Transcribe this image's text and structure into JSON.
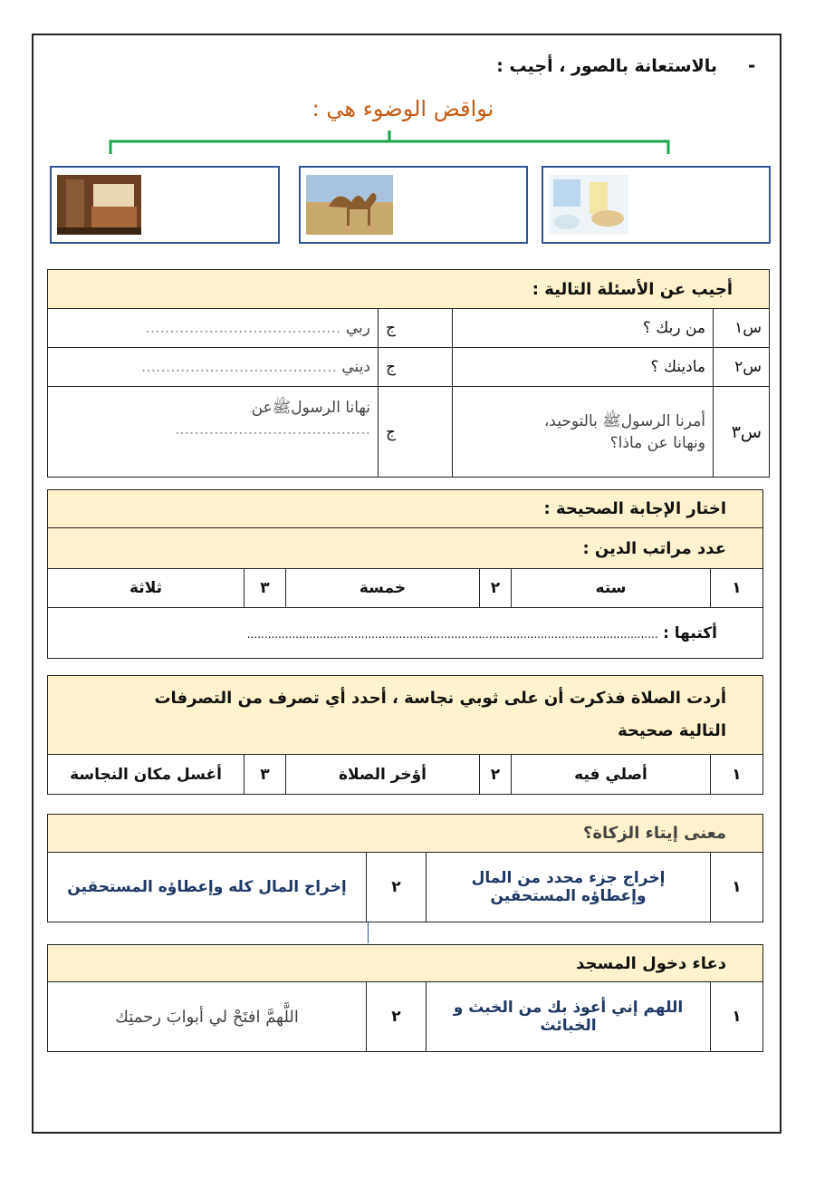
{
  "intro": {
    "dash": "-",
    "instruction": "بالاستعانة بالصور ، أجيب :",
    "title": "نواقض الوضوء هي :",
    "title_color": "#c55a11",
    "bracket_color": "#1aa64a",
    "box_border_color": "#2f5597",
    "images": [
      "bedroom-image",
      "camel-image",
      "bathroom-image"
    ]
  },
  "q1": {
    "header": "أجيب عن الأسئلة التالية :",
    "rows": [
      {
        "num": "س١",
        "question": "من ربك ؟",
        "j": "ج",
        "answer": "ربي",
        "dots": "........................................"
      },
      {
        "num": "س٢",
        "question": "مادينك ؟",
        "j": "ج",
        "answer": "ديني",
        "dots": "........................................"
      },
      {
        "num": "س٣",
        "question_line1": "أمرنا الرسولﷺ بالتوحيد،",
        "question_line2": "ونهانا عن ماذا؟",
        "j": "ج",
        "answer": "نهانا الرسولﷺعن",
        "dots": "........................................"
      }
    ]
  },
  "q2": {
    "header": "اختار الإجابة الصحيحة :",
    "sub": "عدد مراتب الدين :",
    "options": [
      {
        "n": "١",
        "t": "سته"
      },
      {
        "n": "٢",
        "t": "خمسة"
      },
      {
        "n": "٣",
        "t": "ثلاثة"
      }
    ],
    "write_label": "أكتبها :",
    "write_dots": "......................................................................................................................."
  },
  "q3": {
    "header_line1": "أردت الصلاة فذكرت أن على  ثوبي نجاسة ، أحدد أي تصرف من التصرفات",
    "header_line2": "التالية صحيحة",
    "options": [
      {
        "n": "١",
        "t": "أصلي فيه"
      },
      {
        "n": "٢",
        "t": "أؤخر الصلاة"
      },
      {
        "n": "٣",
        "t": "أغسل مكان النجاسة"
      }
    ]
  },
  "q4": {
    "header": "معنى إيتاء الزكاة؟",
    "opt1_n": "١",
    "opt1_line1": "إخراج جزء محدد من المال",
    "opt1_line2": "وإعطاؤه المستحقين",
    "opt2_n": "٢",
    "opt2": "إخراج المال كله وإعطاؤه المستحقين"
  },
  "q5": {
    "header": "دعاء  دخول المسجد",
    "opt1_n": "١",
    "opt1_line1": "اللهم إني أعوذ بك من الخبث و",
    "opt1_line2": "الخبائث",
    "opt2_n": "٢",
    "opt2": "اللَّهمَّ افتَحْ لي أبوابَ رحمتِك"
  }
}
